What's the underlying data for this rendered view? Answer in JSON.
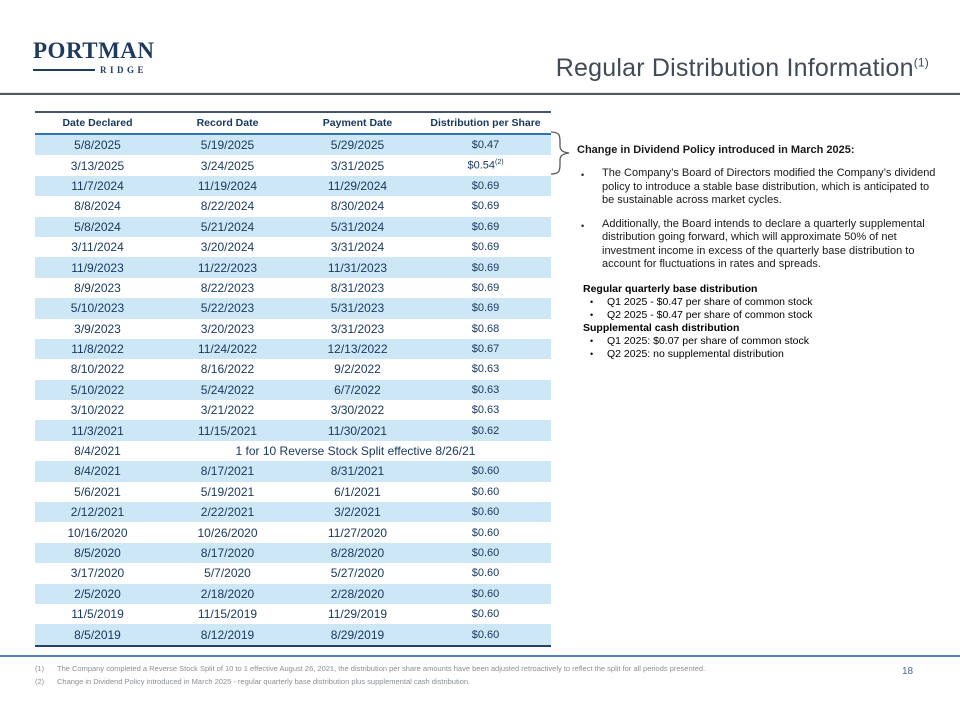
{
  "header": {
    "logo_line1": "PORTMAN",
    "logo_line2": "RIDGE",
    "title": "Regular Distribution Information",
    "title_superscript": "(1)"
  },
  "table": {
    "columns": [
      "Date Declared",
      "Record Date",
      "Payment Date",
      "Distribution per Share"
    ],
    "rows": [
      {
        "date_declared": "5/8/2025",
        "record_date": "5/19/2025",
        "payment_date": "5/29/2025",
        "value": "$0.47"
      },
      {
        "date_declared": "3/13/2025",
        "record_date": "3/24/2025",
        "payment_date": "3/31/2025",
        "value": "$0.54",
        "value_superscript": "(2)"
      },
      {
        "date_declared": "11/7/2024",
        "record_date": "11/19/2024",
        "payment_date": "11/29/2024",
        "value": "$0.69"
      },
      {
        "date_declared": "8/8/2024",
        "record_date": "8/22/2024",
        "payment_date": "8/30/2024",
        "value": "$0.69"
      },
      {
        "date_declared": "5/8/2024",
        "record_date": "5/21/2024",
        "payment_date": "5/31/2024",
        "value": "$0.69"
      },
      {
        "date_declared": "3/11/2024",
        "record_date": "3/20/2024",
        "payment_date": "3/31/2024",
        "value": "$0.69"
      },
      {
        "date_declared": "11/9/2023",
        "record_date": "11/22/2023",
        "payment_date": "11/31/2023",
        "value": "$0.69"
      },
      {
        "date_declared": "8/9/2023",
        "record_date": "8/22/2023",
        "payment_date": "8/31/2023",
        "value": "$0.69"
      },
      {
        "date_declared": "5/10/2023",
        "record_date": "5/22/2023",
        "payment_date": "5/31/2023",
        "value": "$0.69"
      },
      {
        "date_declared": "3/9/2023",
        "record_date": "3/20/2023",
        "payment_date": "3/31/2023",
        "value": "$0.68"
      },
      {
        "date_declared": "11/8/2022",
        "record_date": "11/24/2022",
        "payment_date": "12/13/2022",
        "value": "$0.67"
      },
      {
        "date_declared": "8/10/2022",
        "record_date": "8/16/2022",
        "payment_date": "9/2/2022",
        "value": "$0.63"
      },
      {
        "date_declared": "5/10/2022",
        "record_date": "5/24/2022",
        "payment_date": "6/7/2022",
        "value": "$0.63"
      },
      {
        "date_declared": "3/10/2022",
        "record_date": "3/21/2022",
        "payment_date": "3/30/2022",
        "value": "$0.63"
      },
      {
        "date_declared": "11/3/2021",
        "record_date": "11/15/2021",
        "payment_date": "11/30/2021",
        "value": "$0.62"
      },
      {
        "date_declared": "8/4/2021",
        "span_text": "1 for 10 Reverse Stock Split effective 8/26/21"
      },
      {
        "date_declared": "8/4/2021",
        "record_date": "8/17/2021",
        "payment_date": "8/31/2021",
        "value": "$0.60"
      },
      {
        "date_declared": "5/6/2021",
        "record_date": "5/19/2021",
        "payment_date": "6/1/2021",
        "value": "$0.60"
      },
      {
        "date_declared": "2/12/2021",
        "record_date": "2/22/2021",
        "payment_date": "3/2/2021",
        "value": "$0.60"
      },
      {
        "date_declared": "10/16/2020",
        "record_date": "10/26/2020",
        "payment_date": "11/27/2020",
        "value": "$0.60"
      },
      {
        "date_declared": "8/5/2020",
        "record_date": "8/17/2020",
        "payment_date": "8/28/2020",
        "value": "$0.60"
      },
      {
        "date_declared": "3/17/2020",
        "record_date": "5/7/2020",
        "payment_date": "5/27/2020",
        "value": "$0.60"
      },
      {
        "date_declared": "2/5/2020",
        "record_date": "2/18/2020",
        "payment_date": "2/28/2020",
        "value": "$0.60"
      },
      {
        "date_declared": "11/5/2019",
        "record_date": "11/15/2019",
        "payment_date": "11/29/2019",
        "value": "$0.60"
      },
      {
        "date_declared": "8/5/2019",
        "record_date": "8/12/2019",
        "payment_date": "8/29/2019",
        "value": "$0.60"
      }
    ]
  },
  "sidebar": {
    "policy_heading": "Change in Dividend Policy introduced in March 2025:",
    "policy_bullets": [
      "The Company’s Board of Directors modified the Company’s dividend policy to introduce a stable base distribution, which is anticipated to be sustainable across market cycles.",
      "Additionally, the Board intends to declare a quarterly supplemental distribution going forward, which will approximate 50% of net investment income in excess of the quarterly base distribution to account for fluctuations in rates and spreads."
    ],
    "base_heading": "Regular quarterly base distribution",
    "base_bullets": [
      "Q1 2025 - $0.47 per share of common stock",
      "Q2 2025 - $0.47 per share of common stock"
    ],
    "supplemental_heading": "Supplemental cash distribution",
    "supplemental_bullets": [
      "Q1 2025: $0.07 per share of common stock",
      "Q2 2025: no supplemental distribution"
    ]
  },
  "glyphs": {
    "bullet": "•"
  },
  "footer": {
    "footnotes": [
      {
        "num": "(1)",
        "text": "The Company completed a Reverse Stock Split of 10 to 1 effective August 26, 2021, the distribution per share amounts have been adjusted retroactively to reflect the split for all periods presented."
      },
      {
        "num": "(2)",
        "text": "Change in Dividend Policy introduced in March 2025 - regular quarterly base distribution plus supplemental cash distribution."
      }
    ],
    "page_number": "18"
  },
  "colors": {
    "navy_text": "#17375e",
    "logo_navy": "#1f3a5f",
    "row_highlight": "#cde7f7",
    "header_underline": "#2e74b5",
    "table_border": "#24426b",
    "footer_rule": "#4f81bd",
    "title_gray": "#404b57",
    "footnote_gray": "#8a8f94",
    "page_number_blue": "#44699e"
  }
}
